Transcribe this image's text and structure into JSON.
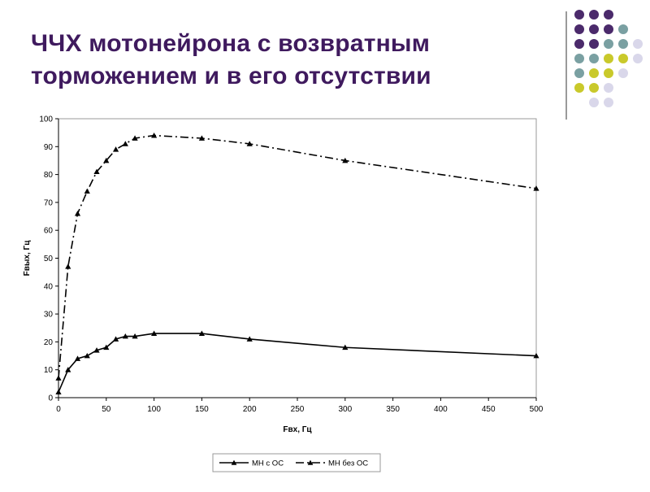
{
  "slide": {
    "title_lines": [
      "ЧЧХ мотонейрона с возвратным",
      "торможением и в его отсутствии"
    ]
  },
  "decor": {
    "dot_colors": {
      "purple": "#4b2a6b",
      "teal": "#7aa0a2",
      "yellow": "#c9c92b",
      "lavender": "#d9d7ea"
    },
    "dot_grid": [
      [
        "purple",
        "purple",
        "purple",
        "",
        ""
      ],
      [
        "purple",
        "purple",
        "purple",
        "teal",
        ""
      ],
      [
        "purple",
        "purple",
        "teal",
        "teal",
        "lavender"
      ],
      [
        "teal",
        "teal",
        "yellow",
        "yellow",
        "lavender"
      ],
      [
        "teal",
        "yellow",
        "yellow",
        "lavender",
        ""
      ],
      [
        "yellow",
        "yellow",
        "lavender",
        "",
        ""
      ],
      [
        "",
        "lavender",
        "lavender",
        "",
        ""
      ]
    ]
  },
  "chart_data": {
    "type": "line",
    "xlabel": "Fвх, Гц",
    "ylabel": "Fвых, Гц",
    "xlim": [
      0,
      500
    ],
    "ylim": [
      0,
      100
    ],
    "x_ticks": [
      0,
      50,
      100,
      150,
      200,
      250,
      300,
      350,
      400,
      450,
      500
    ],
    "y_ticks": [
      0,
      10,
      20,
      30,
      40,
      50,
      60,
      70,
      80,
      90,
      100
    ],
    "grid": false,
    "legend_position": "bottom",
    "series": [
      {
        "name": "МН с ОС",
        "line_style": "solid",
        "marker": "triangle",
        "color": "#000000",
        "x": [
          0,
          10,
          20,
          30,
          40,
          50,
          60,
          70,
          80,
          100,
          150,
          200,
          300,
          500
        ],
        "y": [
          2,
          10,
          14,
          15,
          17,
          18,
          21,
          22,
          22,
          23,
          23,
          21,
          18,
          15
        ]
      },
      {
        "name": "МН без ОС",
        "line_style": "dashdot",
        "marker": "triangle",
        "color": "#000000",
        "x": [
          0,
          10,
          20,
          30,
          40,
          50,
          60,
          70,
          80,
          100,
          150,
          200,
          300,
          500
        ],
        "y": [
          7,
          47,
          66,
          74,
          81,
          85,
          89,
          91,
          93,
          94,
          93,
          91,
          85,
          75
        ]
      }
    ]
  }
}
